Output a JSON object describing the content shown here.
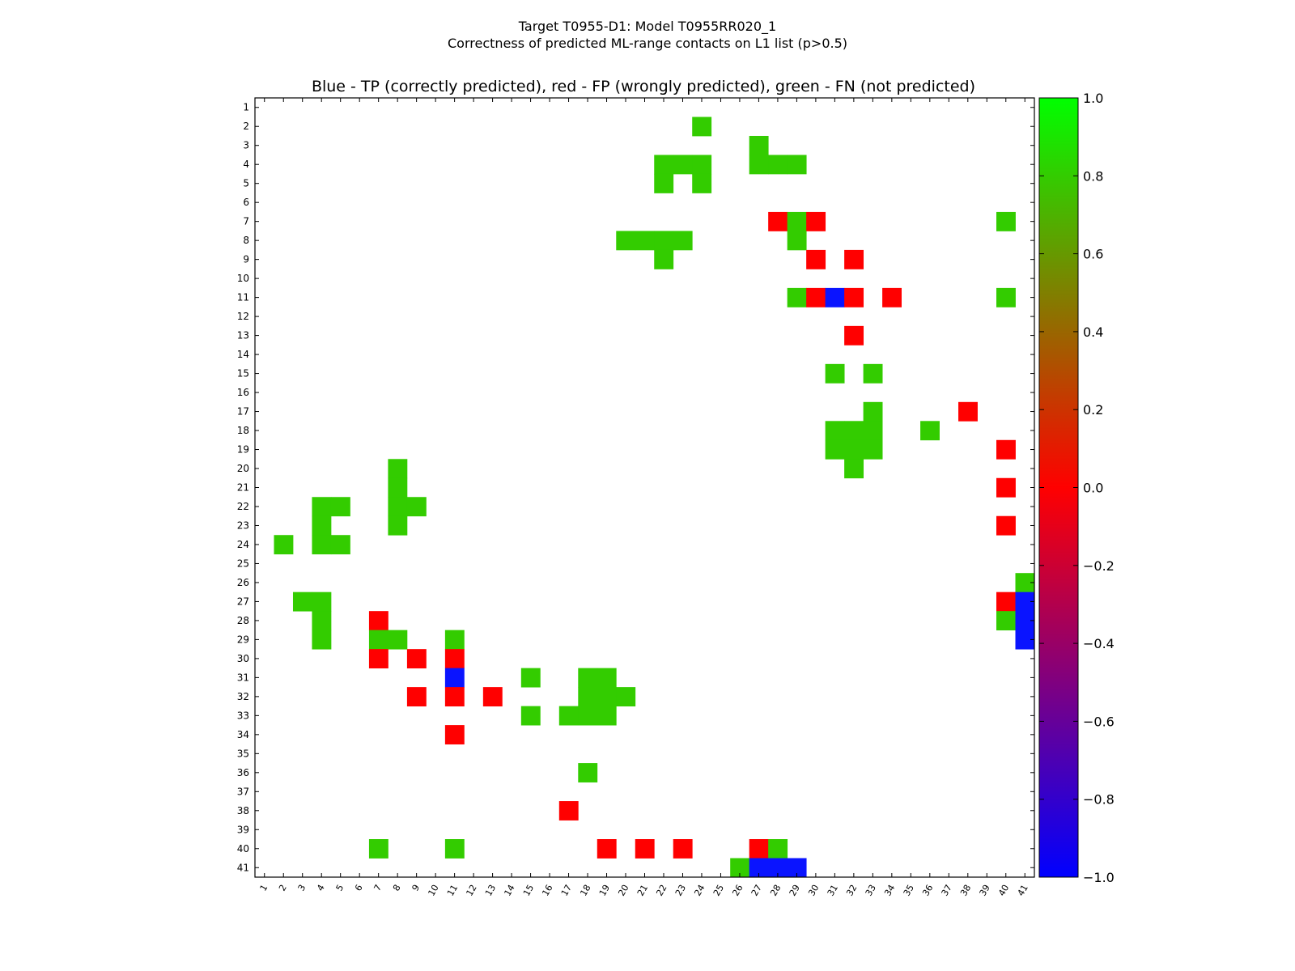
{
  "chart_data": {
    "type": "heatmap",
    "suptitle_line1": "Target T0955-D1: Model T0955RR020_1",
    "suptitle_line2": "Correctness of predicted ML-range contacts on L1 list (p>0.5)",
    "title": "Blue - TP (correctly predicted), red - FP (wrongly predicted), green - FN (not predicted)",
    "x_categories": [
      "1",
      "2",
      "3",
      "4",
      "5",
      "6",
      "7",
      "8",
      "9",
      "10",
      "11",
      "12",
      "13",
      "14",
      "15",
      "16",
      "17",
      "18",
      "19",
      "20",
      "21",
      "22",
      "23",
      "24",
      "25",
      "26",
      "27",
      "28",
      "29",
      "30",
      "31",
      "32",
      "33",
      "34",
      "35",
      "36",
      "37",
      "38",
      "39",
      "40",
      "41"
    ],
    "y_categories": [
      "1",
      "2",
      "3",
      "4",
      "5",
      "6",
      "7",
      "8",
      "9",
      "10",
      "11",
      "12",
      "13",
      "14",
      "15",
      "16",
      "17",
      "18",
      "19",
      "20",
      "21",
      "22",
      "23",
      "24",
      "25",
      "26",
      "27",
      "28",
      "29",
      "30",
      "31",
      "32",
      "33",
      "34",
      "35",
      "36",
      "37",
      "38",
      "39",
      "40",
      "41"
    ],
    "value_legend": {
      "TP": -1.0,
      "FP": 0.0,
      "FN": 0.8
    },
    "cells": [
      {
        "row": 2,
        "col": 24,
        "value": 0.8
      },
      {
        "row": 3,
        "col": 27,
        "value": 0.8
      },
      {
        "row": 4,
        "col": 22,
        "value": 0.8
      },
      {
        "row": 4,
        "col": 23,
        "value": 0.8
      },
      {
        "row": 4,
        "col": 24,
        "value": 0.8
      },
      {
        "row": 4,
        "col": 27,
        "value": 0.8
      },
      {
        "row": 4,
        "col": 28,
        "value": 0.8
      },
      {
        "row": 4,
        "col": 29,
        "value": 0.8
      },
      {
        "row": 5,
        "col": 22,
        "value": 0.8
      },
      {
        "row": 5,
        "col": 24,
        "value": 0.8
      },
      {
        "row": 7,
        "col": 28,
        "value": 0.0
      },
      {
        "row": 7,
        "col": 29,
        "value": 0.8
      },
      {
        "row": 7,
        "col": 30,
        "value": 0.0
      },
      {
        "row": 7,
        "col": 40,
        "value": 0.8
      },
      {
        "row": 8,
        "col": 20,
        "value": 0.8
      },
      {
        "row": 8,
        "col": 21,
        "value": 0.8
      },
      {
        "row": 8,
        "col": 22,
        "value": 0.8
      },
      {
        "row": 8,
        "col": 23,
        "value": 0.8
      },
      {
        "row": 8,
        "col": 29,
        "value": 0.8
      },
      {
        "row": 9,
        "col": 22,
        "value": 0.8
      },
      {
        "row": 9,
        "col": 30,
        "value": 0.0
      },
      {
        "row": 9,
        "col": 32,
        "value": 0.0
      },
      {
        "row": 11,
        "col": 29,
        "value": 0.8
      },
      {
        "row": 11,
        "col": 30,
        "value": 0.0
      },
      {
        "row": 11,
        "col": 31,
        "value": -1.0
      },
      {
        "row": 11,
        "col": 32,
        "value": 0.0
      },
      {
        "row": 11,
        "col": 34,
        "value": 0.0
      },
      {
        "row": 11,
        "col": 40,
        "value": 0.8
      },
      {
        "row": 13,
        "col": 32,
        "value": 0.0
      },
      {
        "row": 15,
        "col": 31,
        "value": 0.8
      },
      {
        "row": 15,
        "col": 33,
        "value": 0.8
      },
      {
        "row": 17,
        "col": 33,
        "value": 0.8
      },
      {
        "row": 17,
        "col": 38,
        "value": 0.0
      },
      {
        "row": 18,
        "col": 31,
        "value": 0.8
      },
      {
        "row": 18,
        "col": 32,
        "value": 0.8
      },
      {
        "row": 18,
        "col": 33,
        "value": 0.8
      },
      {
        "row": 18,
        "col": 36,
        "value": 0.8
      },
      {
        "row": 19,
        "col": 31,
        "value": 0.8
      },
      {
        "row": 19,
        "col": 32,
        "value": 0.8
      },
      {
        "row": 19,
        "col": 33,
        "value": 0.8
      },
      {
        "row": 19,
        "col": 40,
        "value": 0.0
      },
      {
        "row": 20,
        "col": 8,
        "value": 0.8
      },
      {
        "row": 20,
        "col": 32,
        "value": 0.8
      },
      {
        "row": 21,
        "col": 8,
        "value": 0.8
      },
      {
        "row": 21,
        "col": 40,
        "value": 0.0
      },
      {
        "row": 22,
        "col": 4,
        "value": 0.8
      },
      {
        "row": 22,
        "col": 5,
        "value": 0.8
      },
      {
        "row": 22,
        "col": 8,
        "value": 0.8
      },
      {
        "row": 22,
        "col": 9,
        "value": 0.8
      },
      {
        "row": 23,
        "col": 4,
        "value": 0.8
      },
      {
        "row": 23,
        "col": 8,
        "value": 0.8
      },
      {
        "row": 23,
        "col": 40,
        "value": 0.0
      },
      {
        "row": 24,
        "col": 2,
        "value": 0.8
      },
      {
        "row": 24,
        "col": 4,
        "value": 0.8
      },
      {
        "row": 24,
        "col": 5,
        "value": 0.8
      },
      {
        "row": 26,
        "col": 41,
        "value": 0.8
      },
      {
        "row": 27,
        "col": 3,
        "value": 0.8
      },
      {
        "row": 27,
        "col": 4,
        "value": 0.8
      },
      {
        "row": 27,
        "col": 40,
        "value": 0.0
      },
      {
        "row": 27,
        "col": 41,
        "value": -1.0
      },
      {
        "row": 28,
        "col": 4,
        "value": 0.8
      },
      {
        "row": 28,
        "col": 7,
        "value": 0.0
      },
      {
        "row": 28,
        "col": 40,
        "value": 0.8
      },
      {
        "row": 28,
        "col": 41,
        "value": -1.0
      },
      {
        "row": 29,
        "col": 4,
        "value": 0.8
      },
      {
        "row": 29,
        "col": 7,
        "value": 0.8
      },
      {
        "row": 29,
        "col": 8,
        "value": 0.8
      },
      {
        "row": 29,
        "col": 11,
        "value": 0.8
      },
      {
        "row": 29,
        "col": 41,
        "value": -1.0
      },
      {
        "row": 30,
        "col": 7,
        "value": 0.0
      },
      {
        "row": 30,
        "col": 9,
        "value": 0.0
      },
      {
        "row": 30,
        "col": 11,
        "value": 0.0
      },
      {
        "row": 31,
        "col": 11,
        "value": -1.0
      },
      {
        "row": 31,
        "col": 15,
        "value": 0.8
      },
      {
        "row": 31,
        "col": 18,
        "value": 0.8
      },
      {
        "row": 31,
        "col": 19,
        "value": 0.8
      },
      {
        "row": 32,
        "col": 9,
        "value": 0.0
      },
      {
        "row": 32,
        "col": 11,
        "value": 0.0
      },
      {
        "row": 32,
        "col": 13,
        "value": 0.0
      },
      {
        "row": 32,
        "col": 18,
        "value": 0.8
      },
      {
        "row": 32,
        "col": 19,
        "value": 0.8
      },
      {
        "row": 32,
        "col": 20,
        "value": 0.8
      },
      {
        "row": 33,
        "col": 15,
        "value": 0.8
      },
      {
        "row": 33,
        "col": 17,
        "value": 0.8
      },
      {
        "row": 33,
        "col": 18,
        "value": 0.8
      },
      {
        "row": 33,
        "col": 19,
        "value": 0.8
      },
      {
        "row": 34,
        "col": 11,
        "value": 0.0
      },
      {
        "row": 36,
        "col": 18,
        "value": 0.8
      },
      {
        "row": 38,
        "col": 17,
        "value": 0.0
      },
      {
        "row": 40,
        "col": 7,
        "value": 0.8
      },
      {
        "row": 40,
        "col": 11,
        "value": 0.8
      },
      {
        "row": 40,
        "col": 19,
        "value": 0.0
      },
      {
        "row": 40,
        "col": 21,
        "value": 0.0
      },
      {
        "row": 40,
        "col": 23,
        "value": 0.0
      },
      {
        "row": 40,
        "col": 27,
        "value": 0.0
      },
      {
        "row": 40,
        "col": 28,
        "value": 0.8
      },
      {
        "row": 41,
        "col": 26,
        "value": 0.8
      },
      {
        "row": 41,
        "col": 27,
        "value": -1.0
      },
      {
        "row": 41,
        "col": 28,
        "value": -1.0
      },
      {
        "row": 41,
        "col": 29,
        "value": -1.0
      }
    ],
    "colorbar": {
      "range": [
        -1.0,
        1.0
      ],
      "ticks": [
        "1.0",
        "0.8",
        "0.6",
        "0.4",
        "0.2",
        "0.0",
        "−0.2",
        "−0.4",
        "−0.6",
        "−0.8",
        "−1.0"
      ],
      "tick_values": [
        1.0,
        0.8,
        0.6,
        0.4,
        0.2,
        0.0,
        -0.2,
        -0.4,
        -0.6,
        -0.8,
        -1.0
      ]
    },
    "colors": {
      "TP": "#0a14ff",
      "FP": "#ff0000",
      "FN": "#33cc00",
      "background": "#ffffff"
    },
    "colormap_stops": [
      {
        "v": -1.0,
        "color": "#0000ff"
      },
      {
        "v": 0.0,
        "color": "#ff0000"
      },
      {
        "v": 1.0,
        "color": "#00ff00"
      }
    ]
  }
}
